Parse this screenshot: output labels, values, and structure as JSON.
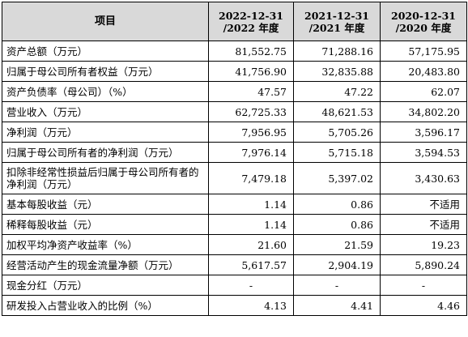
{
  "header": {
    "item": "项目",
    "col1": {
      "date": "2022-12-31",
      "year": "/2022 年度"
    },
    "col2": {
      "date": "2021-12-31",
      "year": "/2021 年度"
    },
    "col3": {
      "date": "2020-12-31",
      "year": "/2020 年度"
    }
  },
  "rows": [
    {
      "label": "资产总额（万元）",
      "v1": "81,552.75",
      "v2": "71,288.16",
      "v3": "57,175.95"
    },
    {
      "label": "归属于母公司所有者权益（万元）",
      "v1": "41,756.90",
      "v2": "32,835.88",
      "v3": "20,483.80"
    },
    {
      "label": "资产负债率（母公司）（%）",
      "v1": "47.57",
      "v2": "47.22",
      "v3": "62.07"
    },
    {
      "label": "营业收入（万元）",
      "v1": "62,725.33",
      "v2": "48,621.53",
      "v3": "34,802.20"
    },
    {
      "label": "净利润（万元）",
      "v1": "7,956.95",
      "v2": "5,705.26",
      "v3": "3,596.17"
    },
    {
      "label": "归属于母公司所有者的净利润（万元）",
      "v1": "7,976.14",
      "v2": "5,715.18",
      "v3": "3,594.53"
    },
    {
      "label": "扣除非经常性损益后归属于母公司所有者的净利润（万元）",
      "v1": "7,479.18",
      "v2": "5,397.02",
      "v3": "3,430.63"
    },
    {
      "label": "基本每股收益（元）",
      "v1": "1.14",
      "v2": "0.86",
      "v3": "不适用"
    },
    {
      "label": "稀释每股收益（元）",
      "v1": "1.14",
      "v2": "0.86",
      "v3": "不适用"
    },
    {
      "label": "加权平均净资产收益率（%）",
      "v1": "21.60",
      "v2": "21.59",
      "v3": "19.23"
    },
    {
      "label": "经营活动产生的现金流量净额（万元）",
      "v1": "5,617.57",
      "v2": "2,904.19",
      "v3": "5,890.24"
    },
    {
      "label": "现金分红（万元）",
      "v1": "-",
      "v2": "-",
      "v3": "-"
    },
    {
      "label": "研发投入占营业收入的比例（%）",
      "v1": "4.13",
      "v2": "4.41",
      "v3": "4.46"
    }
  ]
}
